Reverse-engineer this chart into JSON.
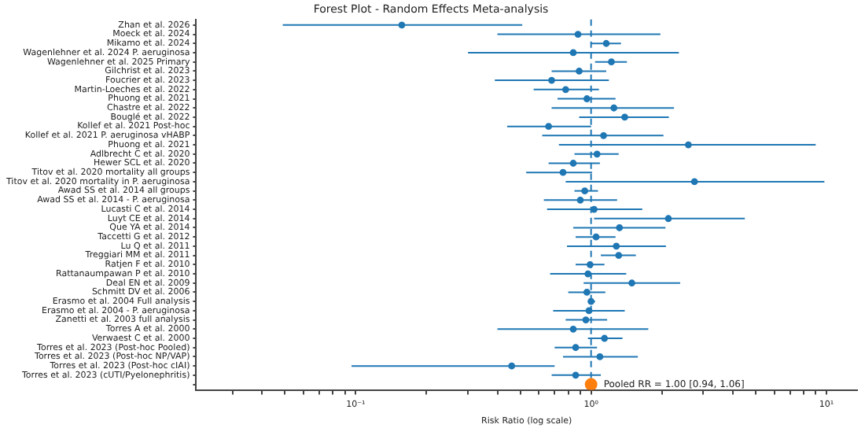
{
  "chart_data": {
    "type": "scatter",
    "orientation": "horizontal",
    "title": "Forest Plot - Random Effects Meta-analysis",
    "xlabel": "Risk Ratio (log scale)",
    "categories": [
      "Zhan et al. 2026",
      "Moeck et al. 2024",
      "Mikamo et al. 2024",
      "Wagenlehner et al. 2024 P. aeruginosa",
      "Wagenlehner et al. 2025 Primary",
      "Gilchrist et al. 2023",
      "Foucrier et al. 2023",
      "Martin-Loeches et al. 2022",
      "Phuong et al. 2021",
      "Chastre et al. 2022",
      "Bouglé et al. 2022",
      "Kollef et al. 2021 Post-hoc",
      "Kollef et al. 2021 P. aeruginosa vHABP",
      "Phuong et al. 2021",
      "Adlbrecht C et al. 2020",
      "Hewer SCL et al. 2020",
      "Titov et al. 2020 mortality all groups",
      "Titov et al. 2020 mortality in P. aeruginosa",
      "Awad SS et al. 2014 all groups",
      "Awad SS et al. 2014 - P. aeruginosa",
      "Lucasti C et al. 2014",
      "Luyt CE et al. 2014",
      "Que YA et al. 2014",
      "Taccetti G et al. 2012",
      "Lu Q et al. 2011",
      "Treggiari MM et al. 2011",
      "Ratjen F et al. 2010",
      "Rattanaumpawan P et al. 2010",
      "Deal EN et al. 2009",
      "Schmitt DV et al. 2006",
      "Erasmo et al. 2004 Full analysis",
      "Erasmo et al. 2004 - P. aeruginosa",
      "Zanetti et al. 2003 full analysis",
      "Torres A et al. 2000",
      "Verwaest C et al. 2000",
      "Torres et al. 2023 (Post-hoc Pooled)",
      "Torres et al. 2023 (Post-hoc NP/VAP)",
      "Torres et al. 2023 (Post-hoc cIAI)",
      "Torres et al. 2023 (cUTI/Pyelonephritis)",
      null
    ],
    "series": [
      {
        "color": "#1f77b4",
        "values": [
          0.157,
          0.88,
          1.16,
          0.84,
          1.22,
          0.89,
          0.68,
          0.78,
          0.96,
          1.25,
          1.39,
          0.66,
          1.13,
          2.59,
          1.06,
          0.84,
          0.76,
          2.75,
          0.94,
          0.9,
          1.03,
          2.13,
          1.32,
          1.05,
          1.28,
          1.31,
          0.99,
          0.97,
          1.49,
          0.96,
          1.0,
          0.98,
          0.95,
          0.84,
          1.14,
          0.86,
          1.09,
          0.46,
          0.86,
          null
        ],
        "errors": [
          [
            0.049,
            0.51
          ],
          [
            0.4,
            1.97
          ],
          [
            1.0,
            1.34
          ],
          [
            0.3,
            2.36
          ],
          [
            1.04,
            1.42
          ],
          [
            0.68,
            1.16
          ],
          [
            0.39,
            1.19
          ],
          [
            0.57,
            1.08
          ],
          [
            0.72,
            1.27
          ],
          [
            0.68,
            2.25
          ],
          [
            0.89,
            2.14
          ],
          [
            0.44,
            1.0
          ],
          [
            0.62,
            2.03
          ],
          [
            0.73,
            9.0
          ],
          [
            0.85,
            1.31
          ],
          [
            0.66,
            1.09
          ],
          [
            0.53,
            1.01
          ],
          [
            0.78,
            9.8
          ],
          [
            0.85,
            1.07
          ],
          [
            0.63,
            1.29
          ],
          [
            0.65,
            1.65
          ],
          [
            1.03,
            4.5
          ],
          [
            0.84,
            2.07
          ],
          [
            0.86,
            1.27
          ],
          [
            0.79,
            2.08
          ],
          [
            1.1,
            1.55
          ],
          [
            0.86,
            1.14
          ],
          [
            0.67,
            1.41
          ],
          [
            0.93,
            2.39
          ],
          [
            0.8,
            1.15
          ],
          [
            0.97,
            1.04
          ],
          [
            0.69,
            1.39
          ],
          [
            0.78,
            1.17
          ],
          [
            0.4,
            1.75
          ],
          [
            0.97,
            1.36
          ],
          [
            0.7,
            1.06
          ],
          [
            0.76,
            1.58
          ],
          [
            0.096,
            0.7
          ],
          [
            0.68,
            1.1
          ],
          null
        ]
      },
      {
        "color": "#ff7f0e",
        "values": [
          null,
          null,
          null,
          null,
          null,
          null,
          null,
          null,
          null,
          null,
          null,
          null,
          null,
          null,
          null,
          null,
          null,
          null,
          null,
          null,
          null,
          null,
          null,
          null,
          null,
          null,
          null,
          null,
          null,
          null,
          null,
          null,
          null,
          null,
          null,
          null,
          null,
          null,
          null,
          1.0
        ]
      }
    ],
    "xlim": [
      0.021,
      13.5
    ],
    "log": "x",
    "xticks": [
      {
        "value": 0.03,
        "label": null
      },
      {
        "value": 0.04,
        "label": null
      },
      {
        "value": 0.05,
        "label": null
      },
      {
        "value": 0.06,
        "label": null
      },
      {
        "value": 0.07,
        "label": null
      },
      {
        "value": 0.08,
        "label": null
      },
      {
        "value": 0.09,
        "label": null
      },
      {
        "value": 0.1,
        "label": "10⁻¹"
      },
      {
        "value": 0.2,
        "label": null
      },
      {
        "value": 0.3,
        "label": null
      },
      {
        "value": 0.4,
        "label": null
      },
      {
        "value": 0.5,
        "label": null
      },
      {
        "value": 0.6,
        "label": null
      },
      {
        "value": 0.7,
        "label": null
      },
      {
        "value": 0.8,
        "label": null
      },
      {
        "value": 0.9,
        "label": null
      },
      {
        "value": 1,
        "label": "10⁰"
      },
      {
        "value": 2,
        "label": null
      },
      {
        "value": 3,
        "label": null
      },
      {
        "value": 4,
        "label": null
      },
      {
        "value": 5,
        "label": null
      },
      {
        "value": 6,
        "label": null
      },
      {
        "value": 7,
        "label": null
      },
      {
        "value": 8,
        "label": null
      },
      {
        "value": 9,
        "label": null
      },
      {
        "value": 10,
        "label": "10¹"
      }
    ],
    "ref_lines": [
      {
        "axis": "x",
        "value": 1,
        "line_style": "dashed",
        "color": "#1f77b4"
      }
    ],
    "annotations": [
      {
        "text": "Pooled RR = 1.00 [0.94, 1.06]",
        "x": 1.0
      }
    ],
    "marker": "circle",
    "grid": false,
    "legend": false
  }
}
